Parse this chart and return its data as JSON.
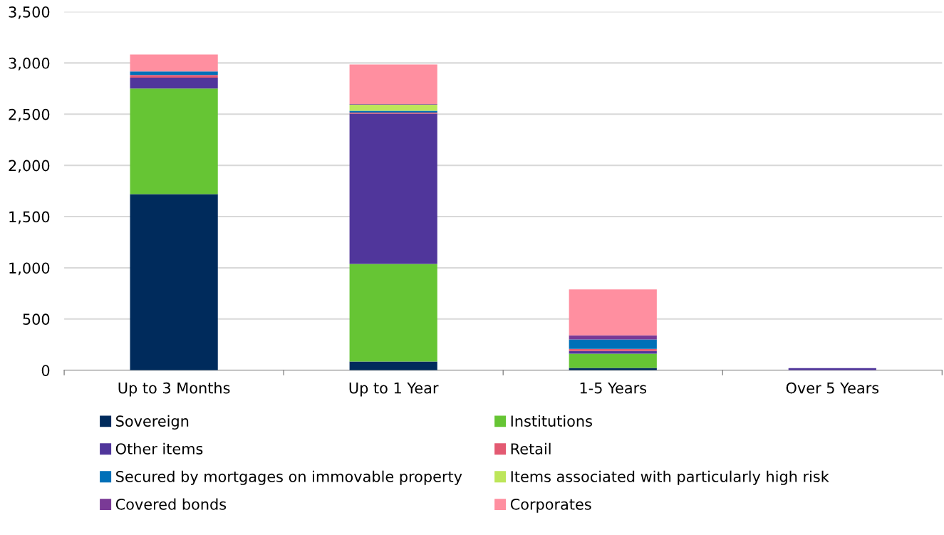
{
  "chart_data": {
    "type": "bar",
    "stacked": true,
    "categories": [
      "Up to 3 Months",
      "Up to 1 Year",
      "1-5 Years",
      "Over 5 Years"
    ],
    "series": [
      {
        "name": "Sovereign",
        "color": "#002b5c",
        "values": [
          1720,
          85,
          23,
          0
        ]
      },
      {
        "name": "Institutions",
        "color": "#66c534",
        "values": [
          1030,
          952,
          139,
          0
        ]
      },
      {
        "name": "Other items",
        "color": "#50369b",
        "values": [
          107,
          1469,
          26,
          20
        ]
      },
      {
        "name": "Retail",
        "color": "#e35a72",
        "values": [
          25,
          10,
          21,
          0
        ]
      },
      {
        "name": "Secured by mortgages on immovable property",
        "color": "#0070b8",
        "values": [
          35,
          18,
          92,
          0
        ]
      },
      {
        "name": "Items associated with particularly high risk",
        "color": "#bde65a",
        "values": [
          0,
          61,
          0,
          0
        ]
      },
      {
        "name": "Covered bonds",
        "color": "#7a3a96",
        "values": [
          0,
          5,
          40,
          0
        ]
      },
      {
        "name": "Corporates",
        "color": "#ff8fa0",
        "values": [
          166,
          385,
          448,
          0
        ]
      }
    ],
    "ylim": [
      0,
      3500
    ],
    "yticks": [
      {
        "value": 0,
        "label": "0"
      },
      {
        "value": 500,
        "label": "500"
      },
      {
        "value": 1000,
        "label": "1,000"
      },
      {
        "value": 1500,
        "label": "1,500"
      },
      {
        "value": 2000,
        "label": "2,000"
      },
      {
        "value": 2500,
        "label": "2,500"
      },
      {
        "value": 3000,
        "label": "3,000"
      },
      {
        "value": 3500,
        "label": "3,500"
      }
    ],
    "grid": "y",
    "legend": "bottom"
  }
}
